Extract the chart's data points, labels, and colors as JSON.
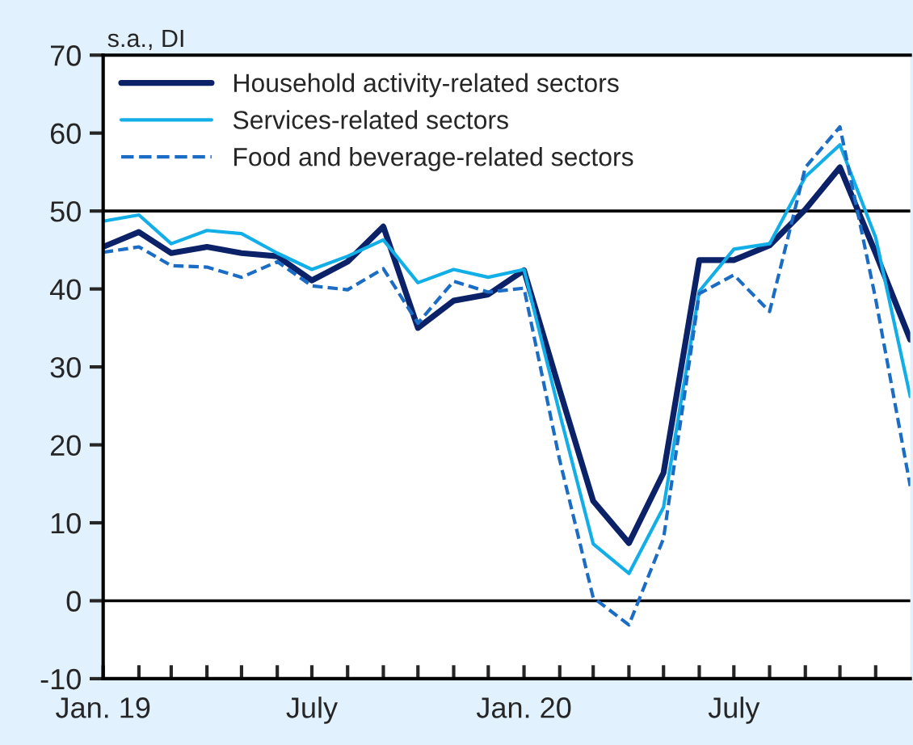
{
  "chart_data": {
    "type": "line",
    "ylabel": "s.a., DI",
    "x": [
      "2019-01",
      "2019-02",
      "2019-03",
      "2019-04",
      "2019-05",
      "2019-06",
      "2019-07",
      "2019-08",
      "2019-09",
      "2019-10",
      "2019-11",
      "2019-12",
      "2020-01",
      "2020-02",
      "2020-03",
      "2020-04",
      "2020-05",
      "2020-06",
      "2020-07",
      "2020-08",
      "2020-09",
      "2020-10",
      "2020-11",
      "2020-12"
    ],
    "series": [
      {
        "name": "Household activity-related sectors",
        "color": "#0b2168",
        "line_style": "solid",
        "values": [
          45.4,
          47.3,
          44.6,
          45.4,
          44.6,
          44.2,
          41.1,
          43.5,
          48.0,
          35.0,
          38.5,
          39.3,
          42.4,
          27,
          12.8,
          7.4,
          16.4,
          43.7,
          43.7,
          45.6,
          50.2,
          55.6,
          44.6,
          33.5
        ]
      },
      {
        "name": "Services-related sectors",
        "color": "#12aee8",
        "line_style": "solid",
        "values": [
          48.7,
          49.5,
          45.8,
          47.5,
          47.1,
          44.6,
          42.5,
          44.2,
          46.3,
          40.8,
          42.5,
          41.5,
          42.5,
          24,
          7.3,
          3.5,
          12,
          39.7,
          45.1,
          45.8,
          54.4,
          58.5,
          46.6,
          26.2
        ]
      },
      {
        "name": "Food and beverage-related sectors",
        "color": "#1a6cc4",
        "line_style": "dashed",
        "values": [
          44.7,
          45.4,
          43.0,
          42.8,
          41.5,
          43.5,
          40.4,
          39.9,
          42.6,
          35.6,
          41.0,
          39.6,
          40.1,
          18,
          0.4,
          -3.1,
          8,
          39.4,
          41.8,
          37.1,
          55.6,
          60.8,
          38.7,
          14.7
        ]
      }
    ],
    "xlim": [
      "2019-01-01",
      "2020-12-01"
    ],
    "xticks": [
      {
        "value": "2019-01",
        "label": "Jan. 19"
      },
      {
        "value": "2019-02",
        "label": null
      },
      {
        "value": "2019-03",
        "label": null
      },
      {
        "value": "2019-04",
        "label": null
      },
      {
        "value": "2019-05",
        "label": null
      },
      {
        "value": "2019-06",
        "label": null
      },
      {
        "value": "2019-07",
        "label": "July"
      },
      {
        "value": "2019-08",
        "label": null
      },
      {
        "value": "2019-09",
        "label": null
      },
      {
        "value": "2019-10",
        "label": null
      },
      {
        "value": "2019-11",
        "label": null
      },
      {
        "value": "2019-12",
        "label": null
      },
      {
        "value": "2020-01",
        "label": "Jan. 20"
      },
      {
        "value": "2020-02",
        "label": null
      },
      {
        "value": "2020-03",
        "label": null
      },
      {
        "value": "2020-04",
        "label": null
      },
      {
        "value": "2020-05",
        "label": null
      },
      {
        "value": "2020-06",
        "label": null
      },
      {
        "value": "2020-07",
        "label": "July"
      },
      {
        "value": "2020-08",
        "label": null
      },
      {
        "value": "2020-09",
        "label": null
      },
      {
        "value": "2020-10",
        "label": null
      },
      {
        "value": "2020-11",
        "label": null
      }
    ],
    "ylim": [
      -10,
      70
    ],
    "yticks": [
      -10,
      0,
      10,
      20,
      30,
      40,
      50,
      60,
      70
    ],
    "ref_lines": [
      {
        "axis": "y",
        "value": 50,
        "label": null,
        "color": "#000000"
      },
      {
        "axis": "y",
        "value": 0,
        "label": null,
        "color": "#000000"
      }
    ],
    "grid": false,
    "legend": "top left"
  }
}
